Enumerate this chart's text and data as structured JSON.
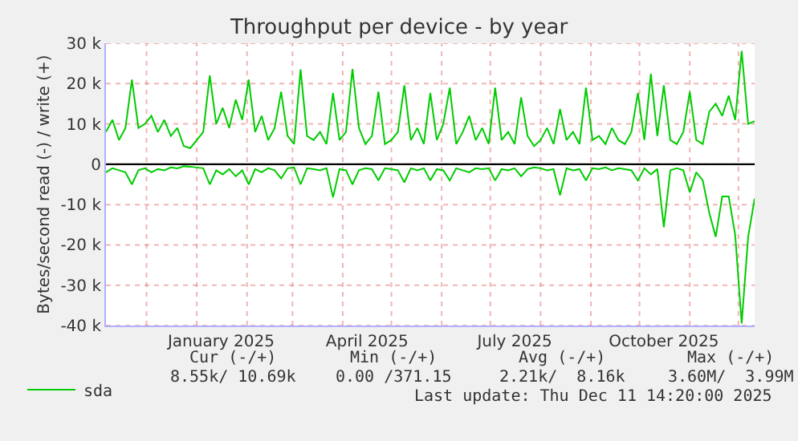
{
  "chart_data": {
    "type": "line",
    "title": "Throughput per device - by year",
    "ylabel": "Bytes/second read (-) / write (+)",
    "x": [
      "2024-11-06",
      "2024-11-10",
      "2024-11-14",
      "2024-11-18",
      "2024-11-22",
      "2024-11-26",
      "2024-11-30",
      "2024-12-04",
      "2024-12-08",
      "2024-12-12",
      "2024-12-16",
      "2024-12-20",
      "2024-12-24",
      "2024-12-28",
      "2025-01-01",
      "2025-01-05",
      "2025-01-09",
      "2025-01-13",
      "2025-01-17",
      "2025-01-21",
      "2025-01-25",
      "2025-01-29",
      "2025-02-02",
      "2025-02-06",
      "2025-02-10",
      "2025-02-14",
      "2025-02-18",
      "2025-02-22",
      "2025-02-26",
      "2025-03-02",
      "2025-03-06",
      "2025-03-10",
      "2025-03-14",
      "2025-03-18",
      "2025-03-22",
      "2025-03-26",
      "2025-03-30",
      "2025-04-03",
      "2025-04-07",
      "2025-04-11",
      "2025-04-15",
      "2025-04-19",
      "2025-04-23",
      "2025-04-27",
      "2025-05-01",
      "2025-05-05",
      "2025-05-09",
      "2025-05-13",
      "2025-05-17",
      "2025-05-21",
      "2025-05-25",
      "2025-05-29",
      "2025-06-02",
      "2025-06-06",
      "2025-06-10",
      "2025-06-14",
      "2025-06-18",
      "2025-06-22",
      "2025-06-26",
      "2025-06-30",
      "2025-07-04",
      "2025-07-08",
      "2025-07-12",
      "2025-07-16",
      "2025-07-20",
      "2025-07-24",
      "2025-07-28",
      "2025-08-01",
      "2025-08-05",
      "2025-08-09",
      "2025-08-13",
      "2025-08-17",
      "2025-08-21",
      "2025-08-25",
      "2025-08-29",
      "2025-09-02",
      "2025-09-06",
      "2025-09-10",
      "2025-09-14",
      "2025-09-18",
      "2025-09-22",
      "2025-09-26",
      "2025-09-30",
      "2025-10-04",
      "2025-10-08",
      "2025-10-12",
      "2025-10-16",
      "2025-10-20",
      "2025-10-24",
      "2025-10-28",
      "2025-11-01",
      "2025-11-05",
      "2025-11-09",
      "2025-11-13",
      "2025-11-17",
      "2025-11-21",
      "2025-11-25",
      "2025-11-29",
      "2025-12-03",
      "2025-12-07",
      "2025-12-11"
    ],
    "series": [
      {
        "name": "sda",
        "color": "#00cc00",
        "values": [
          8000,
          11000,
          6000,
          9000,
          21000,
          9000,
          10000,
          12000,
          8000,
          11000,
          7000,
          9000,
          4500,
          4000,
          6000,
          8000,
          22000,
          10000,
          14000,
          9000,
          16000,
          11000,
          21000,
          8000,
          12000,
          6000,
          9000,
          18000,
          7000,
          5000,
          23500,
          7000,
          6000,
          8000,
          5000,
          17700,
          6000,
          8000,
          23600,
          9000,
          5000,
          7000,
          18000,
          5000,
          6000,
          8000,
          19600,
          6000,
          9000,
          5000,
          17700,
          6000,
          10000,
          19000,
          5000,
          8000,
          12000,
          6000,
          9000,
          5000,
          19000,
          6000,
          8000,
          5000,
          16600,
          7000,
          4500,
          6000,
          9000,
          5000,
          13700,
          6000,
          8000,
          5000,
          19000,
          6000,
          7000,
          5000,
          9000,
          6000,
          5000,
          8000,
          17700,
          6000,
          22400,
          7000,
          19600,
          6000,
          5000,
          8000,
          18000,
          6000,
          5000,
          13000,
          15000,
          12000,
          17000,
          11000,
          28100,
          10000,
          10700
        ]
      },
      {
        "color": "#00cc00",
        "values": [
          -2000,
          -1000,
          -1500,
          -2000,
          -5000,
          -1500,
          -1000,
          -2000,
          -1200,
          -1500,
          -800,
          -1000,
          -500,
          -600,
          -800,
          -1000,
          -5000,
          -1500,
          -2500,
          -1200,
          -3000,
          -1500,
          -5000,
          -1200,
          -2000,
          -1000,
          -1500,
          -3500,
          -1000,
          -800,
          -5000,
          -1000,
          -1200,
          -1500,
          -1000,
          -8200,
          -1200,
          -1500,
          -5000,
          -1500,
          -1000,
          -1200,
          -4000,
          -1000,
          -1200,
          -1500,
          -4500,
          -1000,
          -1500,
          -1000,
          -4000,
          -1200,
          -1500,
          -4000,
          -1000,
          -1500,
          -2000,
          -1000,
          -1200,
          -1000,
          -4000,
          -1200,
          -1500,
          -1000,
          -3000,
          -1200,
          -800,
          -1000,
          -1500,
          -1200,
          -7700,
          -1000,
          -1500,
          -1200,
          -4000,
          -1000,
          -1200,
          -800,
          -1500,
          -1000,
          -1200,
          -1500,
          -4000,
          -1000,
          -2500,
          -1200,
          -15600,
          -1500,
          -1000,
          -1500,
          -7000,
          -2000,
          -4000,
          -12000,
          -18000,
          -8000,
          -8000,
          -17500,
          -39500,
          -18000,
          -8500
        ]
      }
    ],
    "xlim": [
      "2024-11-06",
      "2025-12-11"
    ],
    "xticks": [
      {
        "value": "2024-12-01",
        "label": null
      },
      {
        "value": "2025-01-01",
        "label": null
      },
      {
        "value": "2025-01-16",
        "label": "January 2025"
      },
      {
        "value": "2025-02-01",
        "label": null
      },
      {
        "value": "2025-03-01",
        "label": null
      },
      {
        "value": "2025-04-01",
        "label": null
      },
      {
        "value": "2025-04-16",
        "label": "April 2025"
      },
      {
        "value": "2025-05-01",
        "label": null
      },
      {
        "value": "2025-06-01",
        "label": null
      },
      {
        "value": "2025-07-01",
        "label": null
      },
      {
        "value": "2025-07-16",
        "label": "July 2025"
      },
      {
        "value": "2025-08-01",
        "label": null
      },
      {
        "value": "2025-09-01",
        "label": null
      },
      {
        "value": "2025-10-01",
        "label": null
      },
      {
        "value": "2025-10-16",
        "label": "October 2025"
      },
      {
        "value": "2025-11-01",
        "label": null
      },
      {
        "value": "2025-12-01",
        "label": null
      }
    ],
    "ylim": [
      -40000,
      30000
    ],
    "yticks": [
      {
        "value": -40000,
        "label": "-40 k"
      },
      {
        "value": -30000,
        "label": "-30 k"
      },
      {
        "value": -20000,
        "label": "-20 k"
      },
      {
        "value": -10000,
        "label": "-10 k"
      },
      0,
      {
        "value": 10000,
        "label": "10 k"
      },
      {
        "value": 20000,
        "label": "20 k"
      },
      {
        "value": 30000,
        "label": "30 k"
      }
    ],
    "ref_lines": [
      {
        "axis": "y",
        "value": 0,
        "color": "#000000"
      }
    ],
    "grid": true,
    "legend": "bottom left",
    "marker": "none",
    "line_style": "solid",
    "annotations": [
      "Cur (-/+)",
      "Min (-/+)",
      "Avg (-/+)",
      "Max (-/+)",
      "8.55k/ 10.69k",
      "0.00 /371.15",
      "2.21k/  8.16k",
      "3.60M/  3.99M",
      "Last update: Thu Dec 11 14:20:00 2025"
    ]
  }
}
